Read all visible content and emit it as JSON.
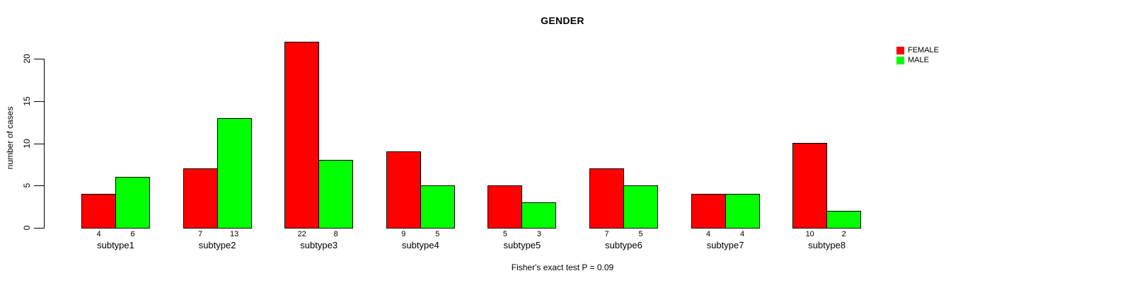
{
  "chart_data": {
    "type": "bar",
    "title": "GENDER",
    "ylabel": "number of cases",
    "xlabel": "",
    "caption": "Fisher's exact test P = 0.09",
    "categories": [
      "subtype1",
      "subtype2",
      "subtype3",
      "subtype4",
      "subtype5",
      "subtype6",
      "subtype7",
      "subtype8"
    ],
    "series": [
      {
        "name": "FEMALE",
        "color": "#ff0000",
        "values": [
          4,
          7,
          22,
          9,
          5,
          7,
          4,
          10
        ]
      },
      {
        "name": "MALE",
        "color": "#00ff00",
        "values": [
          6,
          13,
          8,
          5,
          3,
          5,
          4,
          2
        ]
      }
    ],
    "bar_value_labels": {
      "FEMALE": [
        "4",
        "7",
        "22",
        "9",
        "5",
        "7",
        "4",
        "10"
      ],
      "MALE": [
        "6",
        "13",
        "8",
        "5",
        "3",
        "5",
        "4",
        "2"
      ]
    },
    "yticks": [
      "0",
      "5",
      "10",
      "15",
      "20"
    ],
    "ytick_values": [
      0,
      5,
      10,
      15,
      20
    ],
    "ylim": [
      0,
      22
    ],
    "grid": false,
    "legend_position": "top-right",
    "axis_color": "#000000",
    "bar_border_color": "#000000",
    "background_color": "#ffffff"
  }
}
